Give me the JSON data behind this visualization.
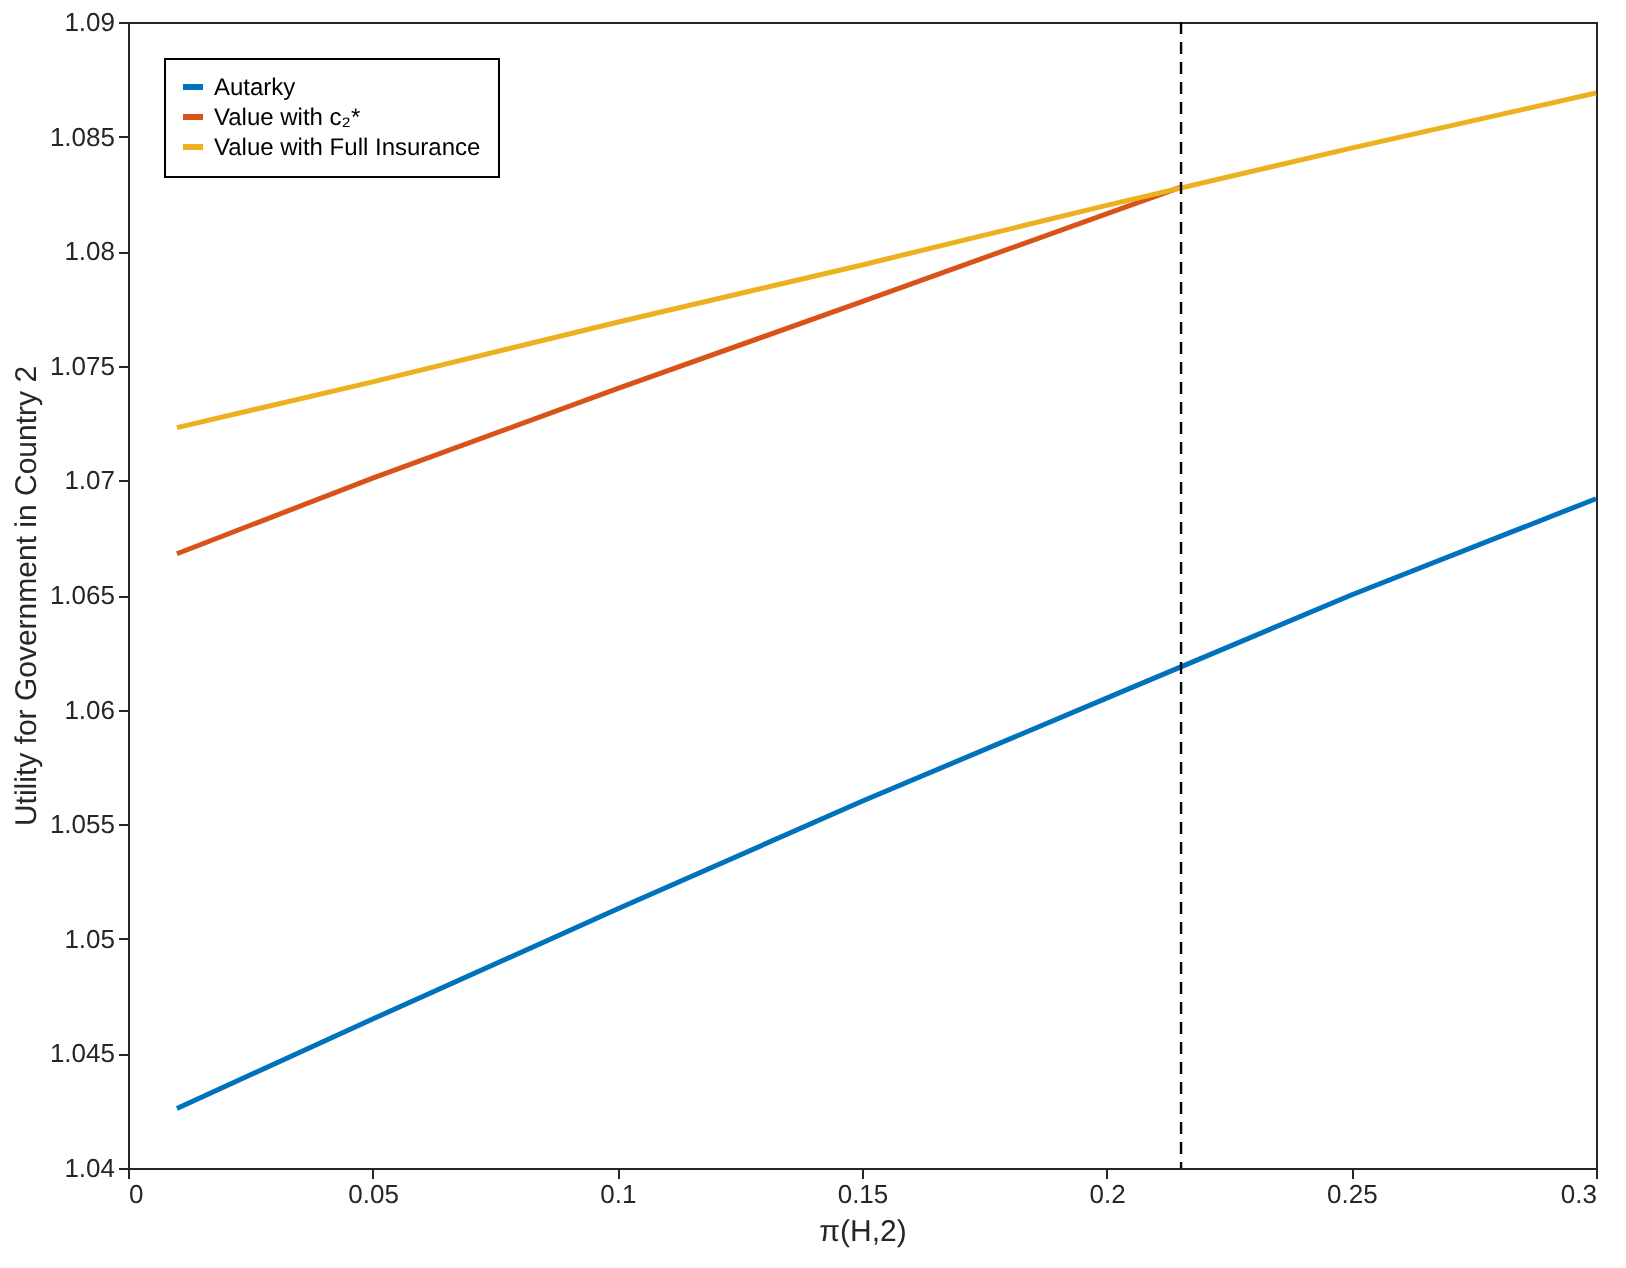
{
  "chart_data": {
    "type": "line",
    "xlabel": "π(H,2)",
    "ylabel": "Utility for Government in Country 2",
    "xlim": [
      0,
      0.3
    ],
    "xticks": [
      0,
      0.05,
      0.1,
      0.15,
      0.2,
      0.25,
      0.3
    ],
    "ylim": [
      1.04,
      1.09
    ],
    "yticks": [
      1.04,
      1.045,
      1.05,
      1.055,
      1.06,
      1.065,
      1.07,
      1.075,
      1.08,
      1.085,
      1.09
    ],
    "grid": false,
    "legend": "top left",
    "marker": "none",
    "line_style": "solid",
    "series": [
      {
        "name": "Autarky",
        "color": "#0072bd",
        "x": [
          0.01,
          0.05,
          0.1,
          0.15,
          0.2,
          0.25,
          0.3
        ],
        "values": [
          1.0426,
          1.0465,
          1.0513,
          1.056,
          1.0605,
          1.065,
          1.0692
        ]
      },
      {
        "name": "Value with c₂*",
        "color": "#d95319",
        "x": [
          0.01,
          0.05,
          0.1,
          0.15,
          0.2152
        ],
        "values": [
          1.0668,
          1.0701,
          1.074,
          1.0778,
          1.0828
        ]
      },
      {
        "name": "Value with Full Insurance",
        "color": "#edb120",
        "x": [
          0.01,
          0.05,
          0.1,
          0.15,
          0.2,
          0.25,
          0.3
        ],
        "values": [
          1.0723,
          1.0743,
          1.0769,
          1.0794,
          1.082,
          1.0845,
          1.0869
        ]
      }
    ],
    "ref_lines": [
      {
        "axis": "x",
        "value": 0.2152,
        "color": "#000000",
        "line_style": "dashed"
      }
    ]
  }
}
